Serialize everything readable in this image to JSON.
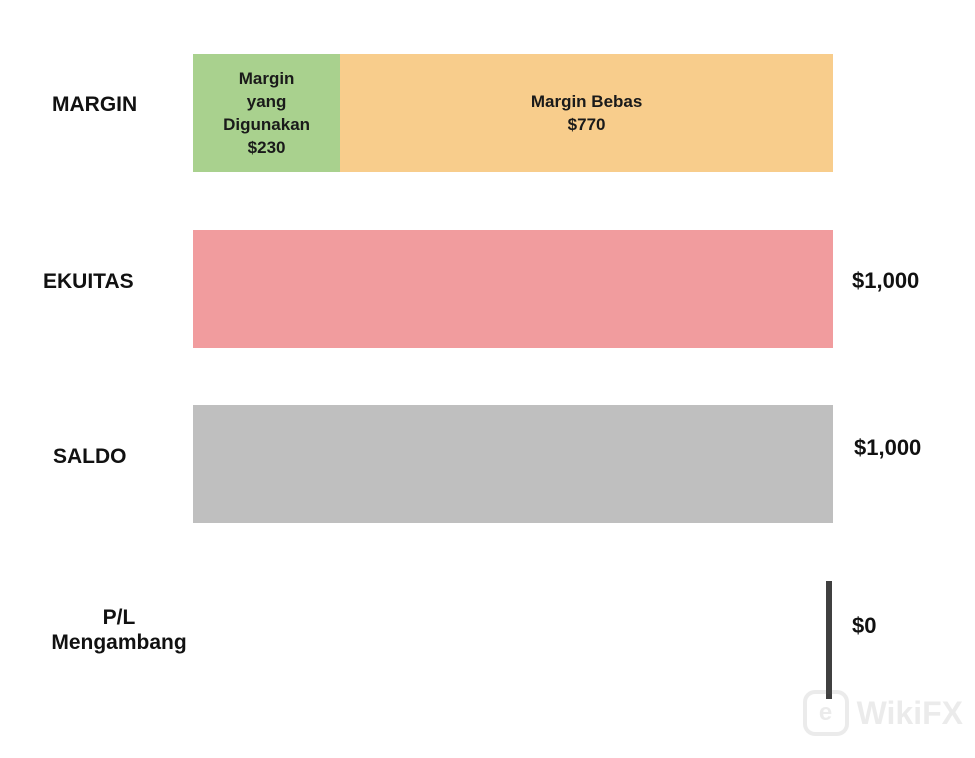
{
  "rows": {
    "margin": {
      "label": "MARGIN",
      "used": {
        "line1": "Margin",
        "line2": "yang",
        "line3": "Digunakan",
        "amount": "$230",
        "value": 230,
        "color": "#a9d18e"
      },
      "free": {
        "line1": "Margin Bebas",
        "amount": "$770",
        "value": 770,
        "color": "#f8cd8c"
      },
      "total": 1000
    },
    "equity": {
      "label": "EKUITAS",
      "value_text": "$1,000",
      "color": "#f19c9e"
    },
    "balance": {
      "label": "SALDO",
      "value_text": "$1,000",
      "color": "#bfbfbf"
    },
    "floating_pl": {
      "label_line1": "P/L",
      "label_line2": "Mengambang",
      "value_text": "$0",
      "line_color": "#404040"
    }
  },
  "watermark": {
    "text": "WikiFX",
    "icon": "wikifx-logo-icon"
  }
}
